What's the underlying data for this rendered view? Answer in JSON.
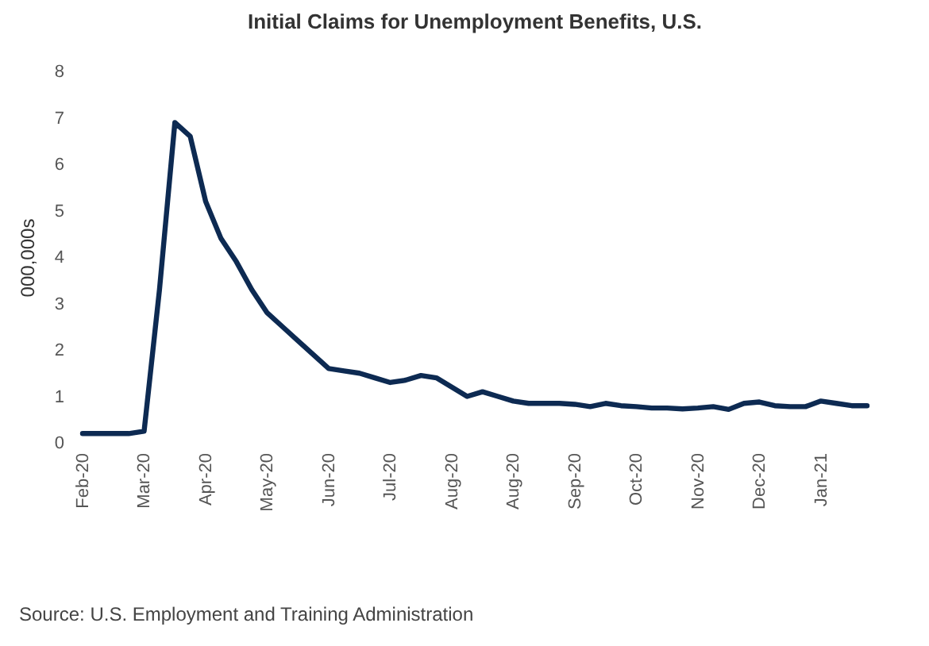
{
  "chart_data": {
    "type": "line",
    "title": "Initial Claims for Unemployment Benefits, U.S.",
    "ylabel": "000,000s",
    "categories": [
      "Feb-20",
      null,
      null,
      null,
      "Mar-20",
      null,
      null,
      null,
      "Apr-20",
      null,
      null,
      null,
      "May-20",
      null,
      null,
      null,
      "Jun-20",
      null,
      null,
      null,
      "Jul-20",
      null,
      null,
      null,
      "Aug-20",
      null,
      null,
      null,
      "Aug-20",
      null,
      null,
      null,
      "Sep-20",
      null,
      null,
      null,
      "Oct-20",
      null,
      null,
      null,
      "Nov-20",
      null,
      null,
      null,
      "Dec-20",
      null,
      null,
      null,
      "Jan-21",
      null,
      null,
      null
    ],
    "series": [
      {
        "color": "#0d2a52",
        "values": [
          0.2,
          0.2,
          0.2,
          0.2,
          0.25,
          3.3,
          6.9,
          6.6,
          5.2,
          4.4,
          3.9,
          3.3,
          2.8,
          2.5,
          2.2,
          1.9,
          1.6,
          1.55,
          1.5,
          1.4,
          1.3,
          1.35,
          1.45,
          1.4,
          1.2,
          1.0,
          1.1,
          1.0,
          0.9,
          0.85,
          0.85,
          0.85,
          0.83,
          0.78,
          0.85,
          0.8,
          0.78,
          0.75,
          0.75,
          0.73,
          0.75,
          0.78,
          0.72,
          0.85,
          0.88,
          0.8,
          0.78,
          0.78,
          0.9,
          0.85,
          0.8,
          0.8
        ]
      }
    ],
    "ylim": [
      0,
      8
    ],
    "yticks": [
      0,
      1,
      2,
      3,
      4,
      5,
      6,
      7,
      8
    ],
    "grid": false,
    "legend": false,
    "marker": "none",
    "line_style": "solid",
    "annotations": [
      "Source: U.S. Employment and Training Administration"
    ]
  }
}
